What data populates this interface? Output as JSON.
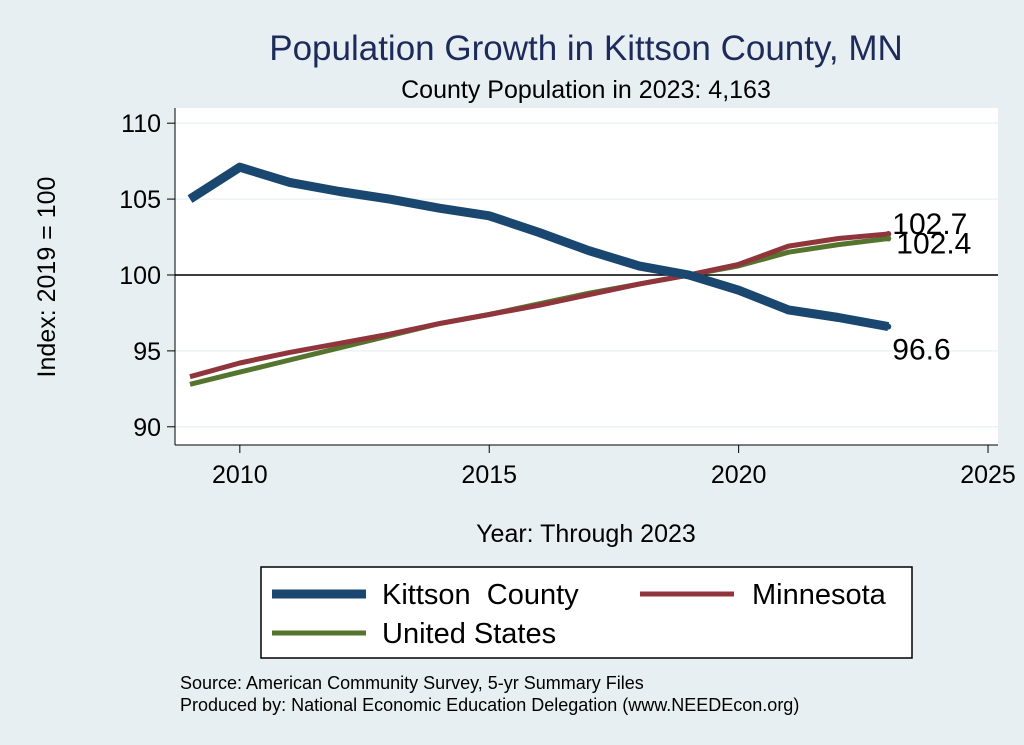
{
  "chart_data": {
    "type": "line",
    "title": "Population Growth in Kittson County, MN",
    "subtitle": "County Population in 2023: 4,163",
    "xlabel": "Year: Through 2023",
    "ylabel": "Index: 2019 = 100",
    "xlim": [
      2008.7,
      2025.2
    ],
    "ylim": [
      88.8,
      111
    ],
    "xticks": [
      2010,
      2015,
      2020,
      2025
    ],
    "yticks": [
      90,
      95,
      100,
      105,
      110
    ],
    "reference_line": 100,
    "grid": true,
    "legend_position": "bottom",
    "x": [
      2009,
      2010,
      2011,
      2012,
      2013,
      2014,
      2015,
      2016,
      2017,
      2018,
      2019,
      2020,
      2021,
      2022,
      2023
    ],
    "series": [
      {
        "name": "Kittson  County",
        "color": "#1a476f",
        "values": [
          105.0,
          107.1,
          106.1,
          105.5,
          105.0,
          104.4,
          103.9,
          102.8,
          101.6,
          100.6,
          100.0,
          99.0,
          97.7,
          97.2,
          96.6
        ],
        "end_label": "96.6"
      },
      {
        "name": "Minnesota",
        "color": "#90353b",
        "values": [
          93.3,
          94.2,
          94.9,
          95.5,
          96.1,
          96.8,
          97.4,
          98.0,
          98.7,
          99.4,
          100.0,
          100.7,
          101.9,
          102.4,
          102.7
        ],
        "end_label": "102.7"
      },
      {
        "name": "United States",
        "color": "#55752f",
        "values": [
          92.8,
          93.6,
          94.4,
          95.2,
          96.0,
          96.8,
          97.4,
          98.1,
          98.8,
          99.4,
          100.0,
          100.6,
          101.5,
          102.0,
          102.4
        ],
        "end_label": "102.4"
      }
    ]
  },
  "notes": {
    "source": "Source: American Community Survey, 5-yr Summary Files",
    "produced_by": "Produced by: National Economic Education Delegation (www.NEEDEcon.org)"
  }
}
